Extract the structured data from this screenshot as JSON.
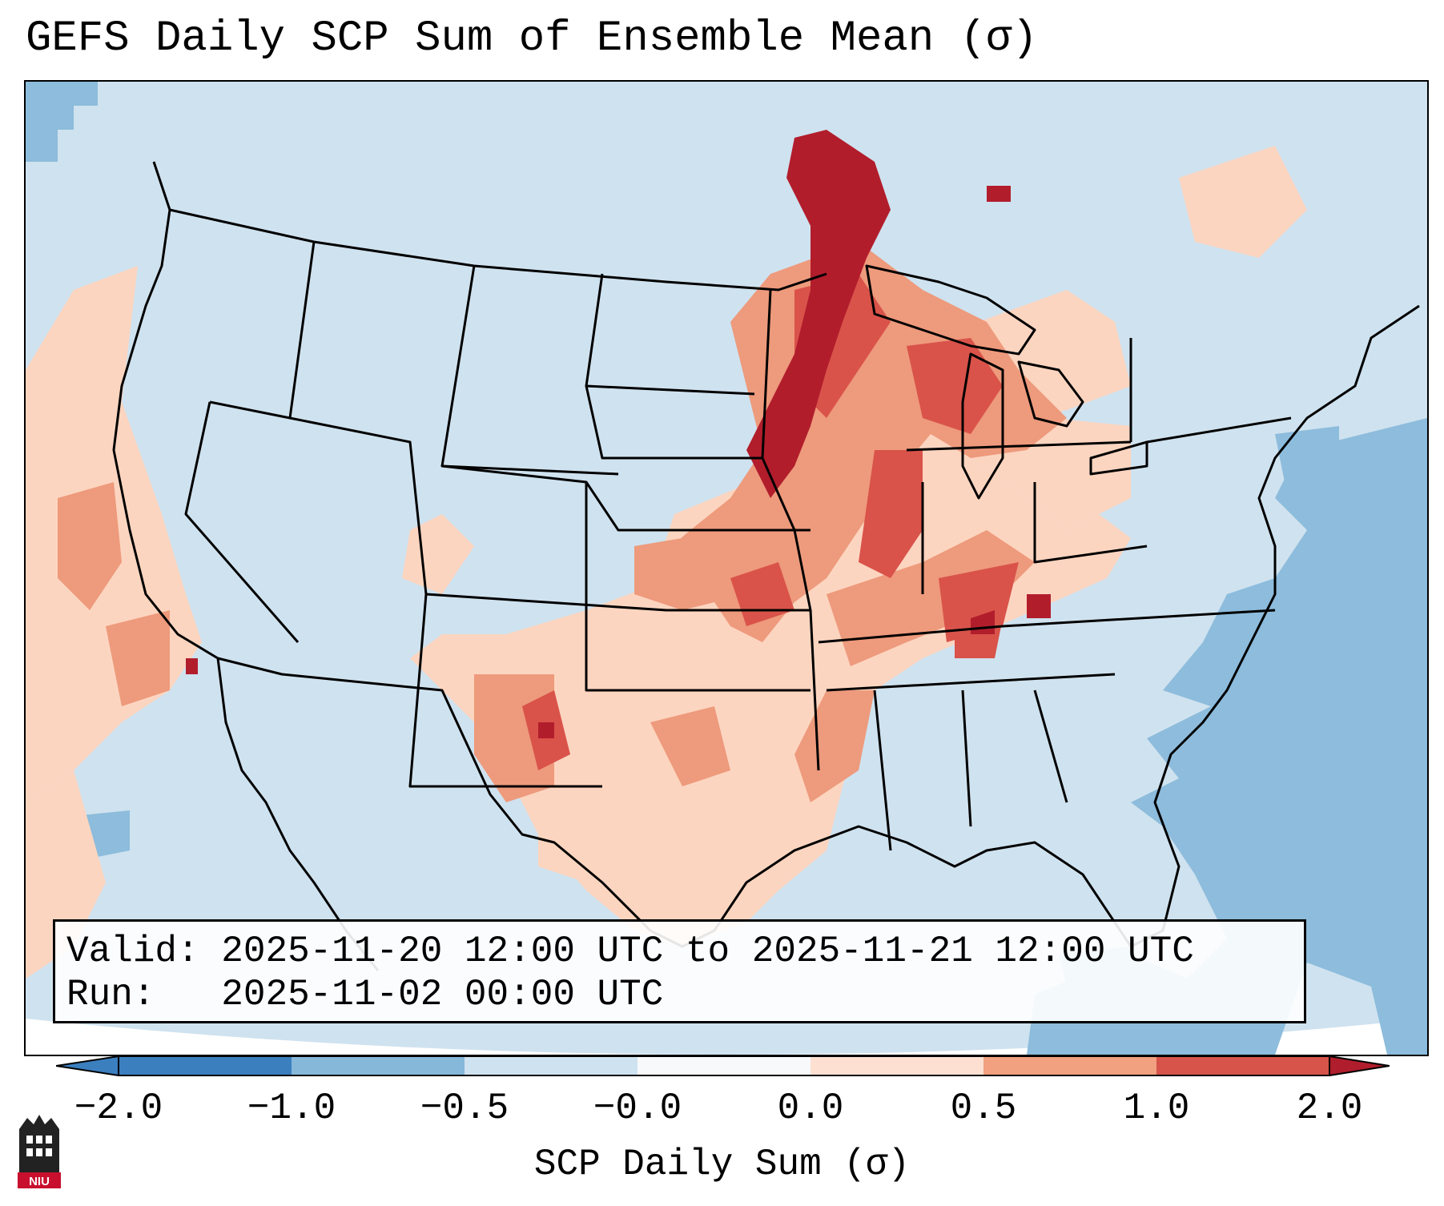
{
  "title": "GEFS Daily SCP Sum of Ensemble Mean (σ)",
  "info": {
    "valid_label": "Valid:",
    "valid_value": "2025-11-20 12:00 UTC to 2025-11-21 12:00 UTC",
    "run_label": "Run:",
    "run_value": "2025-11-02 00:00 UTC"
  },
  "colorbar": {
    "ticks": [
      "−2.0",
      "−1.0",
      "−0.5",
      "−0.0",
      "0.0",
      "0.5",
      "1.0",
      "2.0"
    ],
    "colors": [
      "#3b7fbf",
      "#86b8da",
      "#cfe2ef",
      "#f7f9fb",
      "#fde0d2",
      "#f1a080",
      "#d6544a",
      "#b01d2c"
    ],
    "label": "SCP Daily Sum (σ)"
  },
  "logo": {
    "text": "NIU",
    "color": "#c8102e"
  },
  "map_colors": {
    "ocean_far": "#cfe2ef",
    "neg_mid": "#8dbcdc",
    "pos_light": "#fcd5c0",
    "pos_mid": "#ee9a7c",
    "pos_strong": "#d9534a",
    "pos_max": "#b21d2c"
  }
}
